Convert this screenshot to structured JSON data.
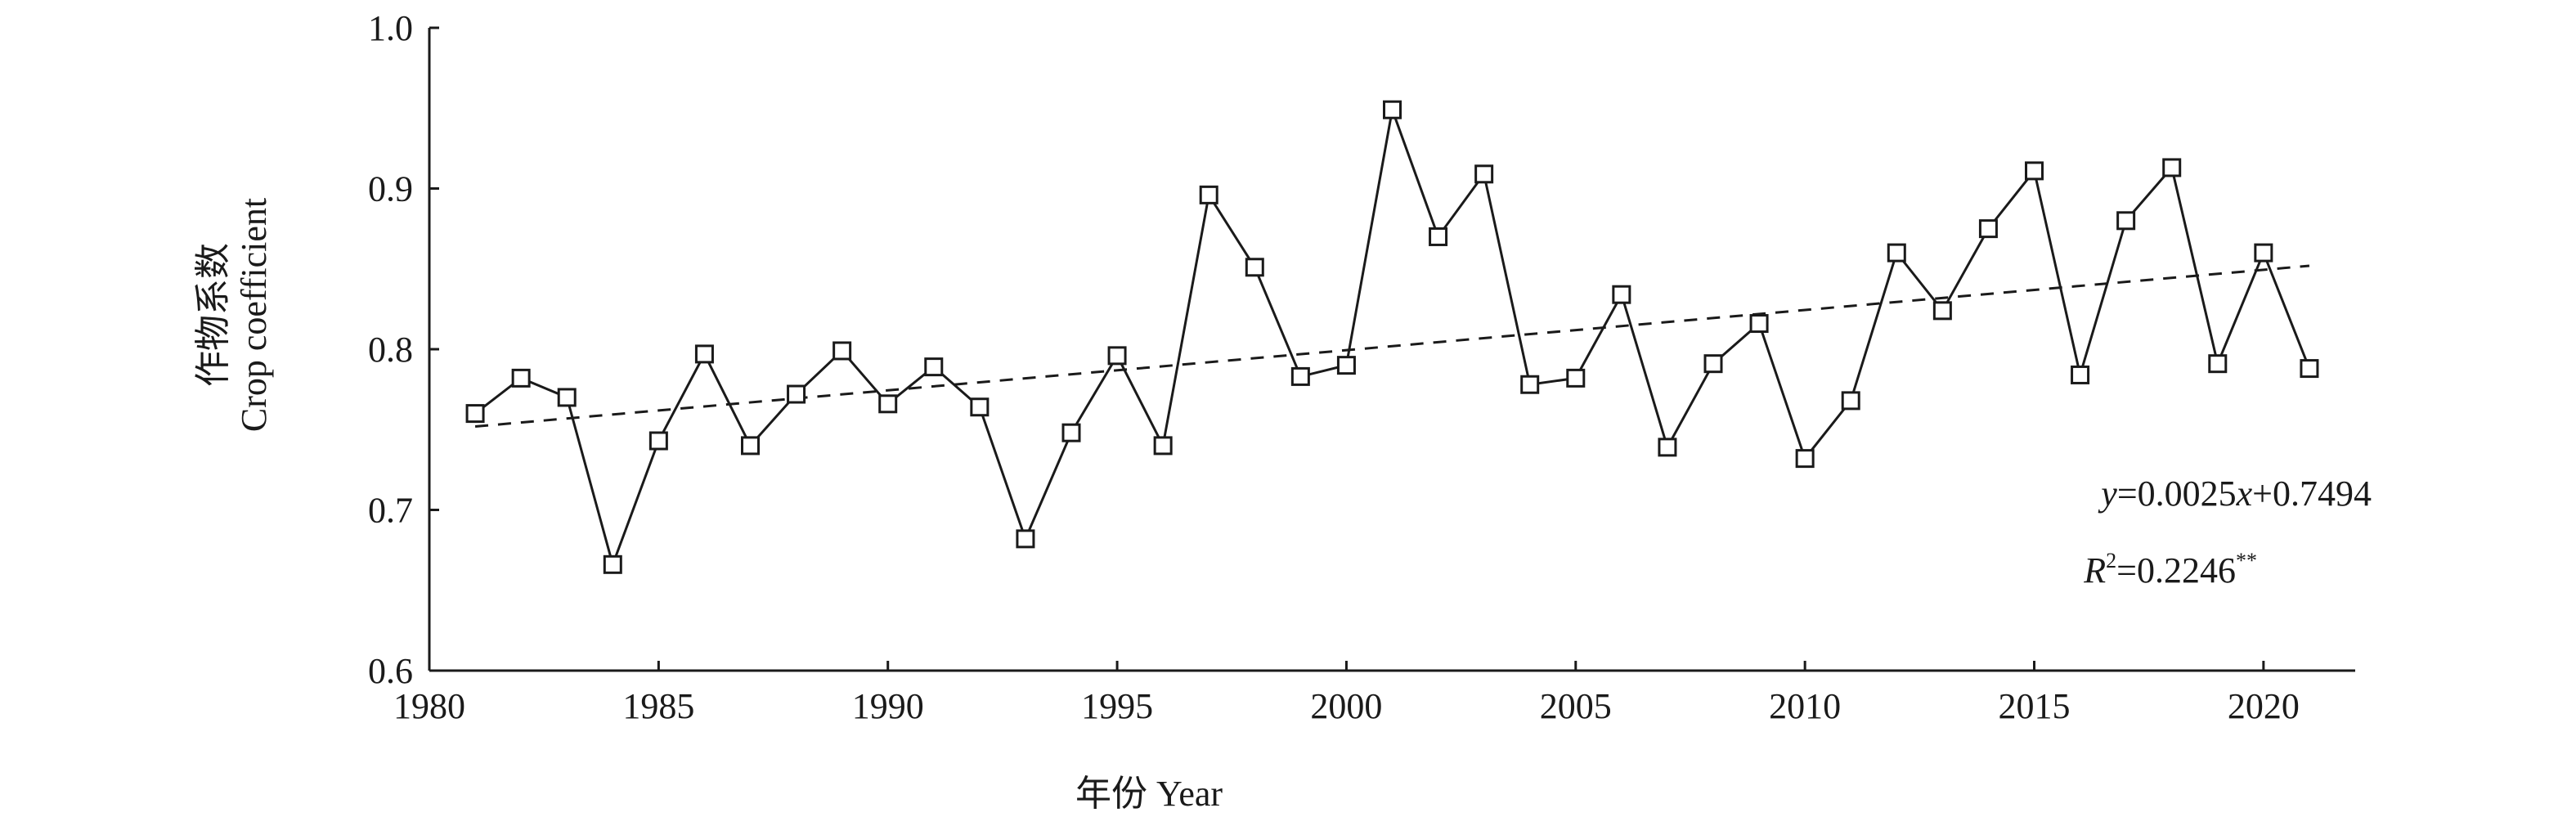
{
  "chart_data": {
    "type": "line",
    "xlabel": "年份 Year",
    "ylabel_line1": "作物系数",
    "ylabel_line2": "Crop coefficient",
    "xlim": [
      1980,
      2022
    ],
    "ylim": [
      0.6,
      1.0
    ],
    "x_ticks": [
      1980,
      1985,
      1990,
      1995,
      2000,
      2005,
      2010,
      2015,
      2020
    ],
    "y_ticks": [
      "0.6",
      "0.7",
      "0.8",
      "0.9",
      "1.0"
    ],
    "x_tick_labels": [
      "1980",
      "1985",
      "1990",
      "1995",
      "2000",
      "2005",
      "2010",
      "2015",
      "2020"
    ],
    "grid": false,
    "series": [
      {
        "x": [
          1981,
          1982,
          1983,
          1984,
          1985,
          1986,
          1987,
          1988,
          1989,
          1990,
          1991,
          1992,
          1993,
          1994,
          1995,
          1996,
          1997,
          1998,
          1999,
          2000,
          2001,
          2002,
          2003,
          2004,
          2005,
          2006,
          2007,
          2008,
          2009,
          2010,
          2011,
          2012,
          2013,
          2014,
          2015,
          2016,
          2017,
          2018,
          2019,
          2020,
          2021
        ],
        "values": [
          0.76,
          0.782,
          0.77,
          0.666,
          0.743,
          0.797,
          0.74,
          0.772,
          0.799,
          0.766,
          0.789,
          0.764,
          0.682,
          0.748,
          0.796,
          0.74,
          0.896,
          0.851,
          0.783,
          0.79,
          0.949,
          0.87,
          0.909,
          0.778,
          0.782,
          0.834,
          0.739,
          0.791,
          0.816,
          0.732,
          0.768,
          0.86,
          0.824,
          0.875,
          0.911,
          0.784,
          0.88,
          0.913,
          0.791,
          0.86,
          0.788
        ],
        "marker": "square"
      }
    ],
    "trendline": {
      "slope": 0.0025,
      "intercept": 0.7494,
      "style": "dashed",
      "equation_text": "y=0.0025x+0.7494",
      "r2_text": "R2=0.2246**"
    }
  }
}
